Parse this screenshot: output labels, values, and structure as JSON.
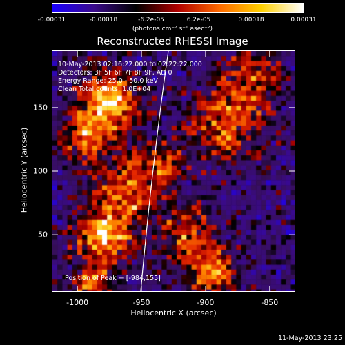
{
  "colorbar": {
    "gradient": [
      "#1a00ff",
      "#3a0a8a",
      "#000000",
      "#b00000",
      "#ff6a00",
      "#ffd000",
      "#ffffff"
    ],
    "ticks": [
      "-0.00031",
      "-0.00018",
      "-6.2e-05",
      "6.2e-05",
      "0.00018",
      "0.00031"
    ],
    "units": "(photons cm⁻² s⁻¹ asec⁻²)"
  },
  "chart_data": {
    "type": "heatmap",
    "title": "Reconstructed RHESSI Image",
    "xlabel": "Heliocentric X (arcsec)",
    "ylabel": "Heliocentric Y (arcsec)",
    "xlim": [
      -1020,
      -830
    ],
    "ylim": [
      5,
      195
    ],
    "x_ticks": [
      -1000,
      -950,
      -900,
      -850
    ],
    "y_ticks": [
      50,
      100,
      150
    ],
    "x_tick_labels": [
      "-1000",
      "-950",
      "-900",
      "-850"
    ],
    "y_tick_labels": [
      "50",
      "100",
      "150"
    ],
    "peak": [
      -984,
      155
    ],
    "annotations": {
      "time": "10-May-2013 02:16:22.000 to 02:22:22.000",
      "detectors": "Detectors: 3F 5F 6F 7F 8F 9F, Att 0",
      "energy": "Energy Range: 25.0 - 50.0 keV",
      "clean": "Clean     Total counts: 1.0E+04",
      "peak_text": "Position of Peak = [-984,155]"
    },
    "value_range": [
      -0.00031,
      0.00031
    ]
  },
  "footer": {
    "date": "11-May-2013 23:25"
  }
}
